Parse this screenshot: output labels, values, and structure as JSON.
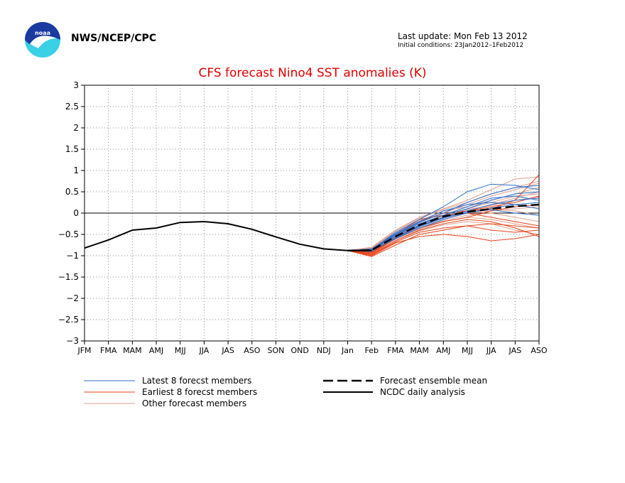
{
  "header": {
    "org": "NWS/NCEP/CPC",
    "last_update": "Last update: Mon Feb 13 2012",
    "initial_conditions": "Initial conditions: 23Jan2012–1Feb2012"
  },
  "colors": {
    "latest": "#2a6fcc",
    "earliest": "#e8441a",
    "other": "#e0a090",
    "mean": "#000000",
    "analysis": "#000000",
    "title": "#e00000"
  },
  "chart_data": {
    "type": "line",
    "title": "CFS forecast Nino4 SST anomalies (K)",
    "xlabel": "",
    "ylabel": "",
    "categories": [
      "JFM",
      "FMA",
      "MAM",
      "AMJ",
      "MJJ",
      "JJA",
      "JAS",
      "ASO",
      "SON",
      "OND",
      "NDJ",
      "Jan",
      "Feb",
      "FMA",
      "MAM",
      "AMJ",
      "MJJ",
      "JJA",
      "JAS",
      "ASO"
    ],
    "ylim": [
      -3,
      3
    ],
    "yticks": [
      "3",
      "2.5",
      "2",
      "1.5",
      "1",
      "0.5",
      "0",
      "−0.5",
      "−1",
      "−1.5",
      "−2",
      "−2.5",
      "−3"
    ],
    "grid": true,
    "legend_position": "bottom",
    "legend": {
      "latest": "Latest 8 forecst members",
      "earliest": "Earliest 8 forecst members",
      "other": "Other forecast members",
      "mean": "Forecast ensemble mean",
      "analysis": "NCDC daily analysis"
    },
    "analysis": {
      "x": [
        0,
        1,
        2,
        3,
        4,
        5,
        6,
        7,
        8,
        9,
        10,
        11,
        12
      ],
      "values": [
        -0.82,
        -0.63,
        -0.4,
        -0.35,
        -0.22,
        -0.2,
        -0.25,
        -0.38,
        -0.56,
        -0.73,
        -0.84,
        -0.88,
        -0.88
      ]
    },
    "ensemble_mean": {
      "x": [
        11,
        12,
        13,
        14,
        15,
        16,
        17,
        18,
        19
      ],
      "values": [
        -0.88,
        -0.87,
        -0.55,
        -0.28,
        -0.08,
        0.03,
        0.1,
        0.16,
        0.2
      ]
    },
    "latest_members": [
      {
        "x": [
          11,
          12,
          13,
          14,
          15,
          16,
          17,
          18,
          19
        ],
        "values": [
          -0.88,
          -0.86,
          -0.45,
          -0.15,
          0.15,
          0.5,
          0.68,
          0.65,
          0.55
        ]
      },
      {
        "x": [
          11,
          12,
          13,
          14,
          15,
          16,
          17,
          18,
          19
        ],
        "values": [
          -0.88,
          -0.9,
          -0.5,
          -0.25,
          -0.05,
          0.1,
          0.3,
          0.45,
          0.5
        ]
      },
      {
        "x": [
          11,
          12,
          13,
          14,
          15,
          16,
          17,
          18,
          19
        ],
        "values": [
          -0.88,
          -0.85,
          -0.55,
          -0.3,
          -0.1,
          0.05,
          0.2,
          0.3,
          0.35
        ]
      },
      {
        "x": [
          11,
          12,
          13,
          14,
          15,
          16,
          17,
          18,
          19
        ],
        "values": [
          -0.88,
          -0.88,
          -0.6,
          -0.35,
          -0.15,
          0.0,
          0.12,
          0.2,
          0.25
        ]
      },
      {
        "x": [
          11,
          12,
          13,
          14,
          15,
          16,
          17,
          18,
          19
        ],
        "values": [
          -0.88,
          -0.87,
          -0.52,
          -0.28,
          -0.05,
          0.15,
          0.35,
          0.4,
          0.3
        ]
      },
      {
        "x": [
          11,
          12,
          13,
          14,
          15,
          16,
          17,
          18,
          19
        ],
        "values": [
          -0.88,
          -0.84,
          -0.48,
          -0.2,
          0.05,
          0.2,
          0.25,
          0.2,
          0.1
        ]
      },
      {
        "x": [
          11,
          12,
          13,
          14,
          15,
          16,
          17,
          18,
          19
        ],
        "values": [
          -0.88,
          -0.89,
          -0.58,
          -0.32,
          -0.12,
          0.02,
          0.08,
          0.0,
          -0.05
        ]
      },
      {
        "x": [
          11,
          12,
          13,
          14,
          15,
          16,
          17,
          18,
          19
        ],
        "values": [
          -0.88,
          -0.86,
          -0.5,
          -0.22,
          0.0,
          0.25,
          0.45,
          0.6,
          0.65
        ]
      }
    ],
    "earliest_members": [
      {
        "x": [
          11,
          12,
          13,
          14,
          15,
          16,
          17,
          18,
          19
        ],
        "values": [
          -0.88,
          -1.0,
          -0.7,
          -0.55,
          -0.5,
          -0.55,
          -0.65,
          -0.6,
          -0.5
        ]
      },
      {
        "x": [
          11,
          12,
          13,
          14,
          15,
          16,
          17,
          18,
          19
        ],
        "values": [
          -0.88,
          -0.92,
          -0.55,
          -0.2,
          0.0,
          0.05,
          0.1,
          0.3,
          0.9
        ]
      },
      {
        "x": [
          11,
          12,
          13,
          14,
          15,
          16,
          17,
          18,
          19
        ],
        "values": [
          -0.88,
          -0.95,
          -0.6,
          -0.35,
          -0.2,
          -0.1,
          0.05,
          0.15,
          0.2
        ]
      },
      {
        "x": [
          11,
          12,
          13,
          14,
          15,
          16,
          17,
          18,
          19
        ],
        "values": [
          -0.88,
          -1.02,
          -0.75,
          -0.5,
          -0.4,
          -0.3,
          -0.25,
          -0.3,
          -0.35
        ]
      },
      {
        "x": [
          11,
          12,
          13,
          14,
          15,
          16,
          17,
          18,
          19
        ],
        "values": [
          -0.88,
          -0.9,
          -0.5,
          -0.15,
          -0.05,
          0.0,
          -0.1,
          -0.2,
          -0.3
        ]
      },
      {
        "x": [
          11,
          12,
          13,
          14,
          15,
          16,
          17,
          18,
          19
        ],
        "values": [
          -0.88,
          -0.97,
          -0.65,
          -0.4,
          -0.25,
          -0.15,
          -0.2,
          -0.35,
          -0.55
        ]
      },
      {
        "x": [
          11,
          12,
          13,
          14,
          15,
          16,
          17,
          18,
          19
        ],
        "values": [
          -0.88,
          -0.93,
          -0.58,
          -0.3,
          -0.1,
          0.05,
          0.15,
          0.25,
          0.4
        ]
      },
      {
        "x": [
          11,
          12,
          13,
          14,
          15,
          16,
          17,
          18,
          19
        ],
        "values": [
          -0.88,
          -0.98,
          -0.68,
          -0.45,
          -0.35,
          -0.3,
          -0.4,
          -0.45,
          -0.4
        ]
      }
    ],
    "other_members": [
      {
        "x": [
          11,
          12,
          13,
          14,
          15,
          16,
          17,
          18,
          19
        ],
        "values": [
          -0.88,
          -0.8,
          -0.4,
          -0.1,
          0.1,
          0.3,
          0.55,
          0.8,
          0.85
        ]
      },
      {
        "x": [
          11,
          12,
          13,
          14,
          15,
          16,
          17,
          18,
          19
        ],
        "values": [
          -0.88,
          -0.83,
          -0.45,
          -0.2,
          0.0,
          0.2,
          0.4,
          0.55,
          0.7
        ]
      },
      {
        "x": [
          11,
          12,
          13,
          14,
          15,
          16,
          17,
          18,
          19
        ],
        "values": [
          -0.88,
          -0.86,
          -0.5,
          -0.25,
          -0.05,
          0.1,
          0.25,
          0.4,
          0.45
        ]
      },
      {
        "x": [
          11,
          12,
          13,
          14,
          15,
          16,
          17,
          18,
          19
        ],
        "values": [
          -0.88,
          -0.9,
          -0.55,
          -0.3,
          -0.1,
          0.0,
          0.1,
          0.05,
          -0.05
        ]
      },
      {
        "x": [
          11,
          12,
          13,
          14,
          15,
          16,
          17,
          18,
          19
        ],
        "values": [
          -0.88,
          -0.92,
          -0.62,
          -0.38,
          -0.2,
          -0.1,
          -0.15,
          -0.25,
          -0.35
        ]
      },
      {
        "x": [
          11,
          12,
          13,
          14,
          15,
          16,
          17,
          18,
          19
        ],
        "values": [
          -0.88,
          -0.85,
          -0.48,
          -0.18,
          0.05,
          0.15,
          0.3,
          0.45,
          0.6
        ]
      },
      {
        "x": [
          11,
          12,
          13,
          14,
          15,
          16,
          17,
          18,
          19
        ],
        "values": [
          -0.88,
          -0.88,
          -0.58,
          -0.35,
          -0.18,
          -0.05,
          0.0,
          -0.1,
          -0.2
        ]
      },
      {
        "x": [
          11,
          12,
          13,
          14,
          15,
          16,
          17,
          18,
          19
        ],
        "values": [
          -0.88,
          -0.94,
          -0.65,
          -0.42,
          -0.28,
          -0.2,
          -0.25,
          -0.4,
          -0.5
        ]
      },
      {
        "x": [
          11,
          12,
          13,
          14,
          15,
          16,
          17,
          18,
          19
        ],
        "values": [
          -0.88,
          -0.82,
          -0.42,
          -0.12,
          0.08,
          0.25,
          0.45,
          0.6,
          0.75
        ]
      },
      {
        "x": [
          11,
          12,
          13,
          14,
          15,
          16,
          17,
          18,
          19
        ],
        "values": [
          -0.88,
          -0.87,
          -0.52,
          -0.28,
          -0.08,
          0.08,
          0.18,
          0.3,
          0.38
        ]
      },
      {
        "x": [
          11,
          12,
          13,
          14,
          15,
          16,
          17,
          18,
          19
        ],
        "values": [
          -0.88,
          -0.91,
          -0.6,
          -0.36,
          -0.15,
          0.0,
          0.05,
          0.1,
          0.15
        ]
      },
      {
        "x": [
          11,
          12,
          13,
          14,
          15,
          16,
          17,
          18,
          19
        ],
        "values": [
          -0.88,
          -0.89,
          -0.56,
          -0.32,
          -0.12,
          0.05,
          0.2,
          0.35,
          0.5
        ]
      }
    ]
  }
}
